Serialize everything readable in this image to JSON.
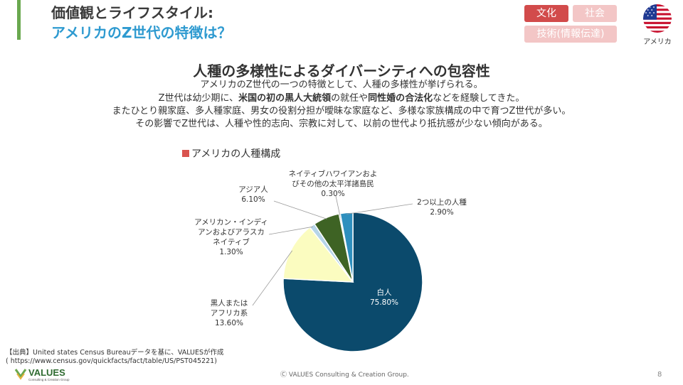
{
  "header": {
    "title_line1": "価値観とライフスタイル:",
    "title_line2": "アメリカのZ世代の特徴は？",
    "tags": [
      {
        "label": "文化",
        "active": true
      },
      {
        "label": "社会",
        "active": false
      },
      {
        "label": "技術(情報伝達)",
        "active": false
      }
    ],
    "country": "アメリカ",
    "flag_icon": "us-flag-icon"
  },
  "main": {
    "heading": "人種の多様性によるダイバーシティへの包容性",
    "body": [
      {
        "segments": [
          {
            "text": "アメリカのZ世代の一つの特徴として、人種の多様性が挙げられる。",
            "bold": false
          }
        ]
      },
      {
        "segments": [
          {
            "text": "Z世代は幼少期に、",
            "bold": false
          },
          {
            "text": "米国の初の黒人大統領",
            "bold": true
          },
          {
            "text": "の就任や",
            "bold": false
          },
          {
            "text": "同性婚の合法化",
            "bold": true
          },
          {
            "text": "などを経験してきた。",
            "bold": false
          }
        ]
      },
      {
        "segments": [
          {
            "text": "またひとり親家庭、多人種家庭、男女の役割分担が曖昧な家庭など、多様な家族構成の中で育つZ世代が多い。",
            "bold": false
          }
        ]
      },
      {
        "segments": [
          {
            "text": "その影響でZ世代は、人種や性的志向、宗教に対して、以前の世代より抵抗感が少ない傾向がある。",
            "bold": false
          }
        ]
      }
    ]
  },
  "chart_data": {
    "type": "pie",
    "title": "アメリカの人種構成",
    "title_color": "#d9534f",
    "slices": [
      {
        "label": "白人",
        "value": 75.8,
        "value_label": "75.80%",
        "color": "#0b4a6c"
      },
      {
        "label": "黒人または アフリカ系",
        "value": 13.6,
        "value_label": "13.60%",
        "color": "#fbfcc0"
      },
      {
        "label": "アメリカン・インディアンおよびアラスカ ネイティブ",
        "value": 1.3,
        "value_label": "1.30%",
        "color": "#b6d5e8"
      },
      {
        "label": "アジア人",
        "value": 6.1,
        "value_label": "6.10%",
        "color": "#3e6324"
      },
      {
        "label": "ネイティブハワイアンおよびその他の太平洋諸島民",
        "value": 0.3,
        "value_label": "0.30%",
        "color": "#1a3a56"
      },
      {
        "label": "2つ以上の人種",
        "value": 2.9,
        "value_label": "2.90%",
        "color": "#2e8fbe"
      }
    ]
  },
  "footer": {
    "source_line1": "【出典】United states Census Bureauデータを基に、VALUESが作成",
    "source_line2": "( https://www.census.gov/quickfacts/fact/table/US/PST045221)",
    "logo_text": "VALUES",
    "logo_sub": "Consulting & Creation Group",
    "copyright": "Ⓒ VALUES Consulting & Creation Group.",
    "page_number": "8"
  }
}
